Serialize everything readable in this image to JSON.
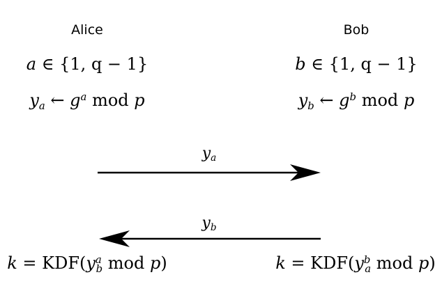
{
  "alice": {
    "name": "Alice",
    "pick": {
      "var": "a",
      "rel": "∈",
      "set": "{1, q − 1}"
    },
    "public": {
      "y": "y",
      "sub": "a",
      "arrow": "←",
      "g": "g",
      "exp": "a",
      "mod": "mod",
      "p": "p"
    },
    "key": {
      "k": "k",
      "eq": "=",
      "kdf": "KDF(",
      "y": "y",
      "sub": "b",
      "exp": "a",
      "mod": "mod",
      "p": "p",
      "close": ")"
    }
  },
  "bob": {
    "name": "Bob",
    "pick": {
      "var": "b",
      "rel": "∈",
      "set": "{1, q − 1}"
    },
    "public": {
      "y": "y",
      "sub": "b",
      "arrow": "←",
      "g": "g",
      "exp": "b",
      "mod": "mod",
      "p": "p"
    },
    "key": {
      "k": "k",
      "eq": "=",
      "kdf": "KDF(",
      "y": "y",
      "sub": "a",
      "exp": "b",
      "mod": "mod",
      "p": "p",
      "close": ")"
    }
  },
  "messages": [
    {
      "direction": "alice-to-bob",
      "label": {
        "y": "y",
        "sub": "a"
      }
    },
    {
      "direction": "bob-to-alice",
      "label": {
        "y": "y",
        "sub": "b"
      }
    }
  ]
}
